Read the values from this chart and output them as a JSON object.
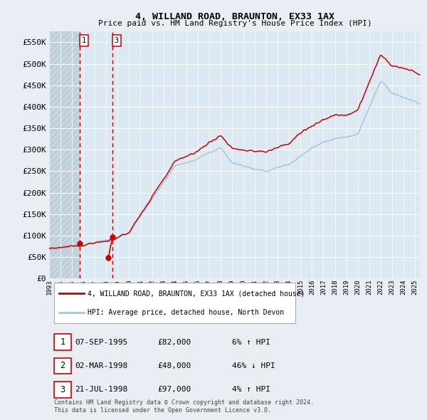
{
  "title": "4, WILLAND ROAD, BRAUNTON, EX33 1AX",
  "subtitle": "Price paid vs. HM Land Registry's House Price Index (HPI)",
  "ylim": [
    0,
    575000
  ],
  "yticks": [
    0,
    50000,
    100000,
    150000,
    200000,
    250000,
    300000,
    350000,
    400000,
    450000,
    500000,
    550000
  ],
  "ytick_labels": [
    "£0",
    "£50K",
    "£100K",
    "£150K",
    "£200K",
    "£250K",
    "£300K",
    "£350K",
    "£400K",
    "£450K",
    "£500K",
    "£550K"
  ],
  "xlim_start": 1993.0,
  "xlim_end": 2025.5,
  "background_color": "#e8eef4",
  "plot_bg_color": "#dce8f2",
  "grid_color": "#ffffff",
  "hatch_fill_color": "#c8d4de",
  "line_red": "#cc0000",
  "line_blue": "#a8c4dc",
  "transaction_marker_color": "#cc0000",
  "vline_color": "#cc0000",
  "legend_label_red": "4, WILLAND ROAD, BRAUNTON, EX33 1AX (detached house)",
  "legend_label_blue": "HPI: Average price, detached house, North Devon",
  "marker_dates": [
    1995.685,
    1998.17,
    1998.55
  ],
  "marker_prices": [
    82000,
    48000,
    97000
  ],
  "vlines": [
    1995.685,
    1998.55
  ],
  "table_rows": [
    [
      "1",
      "07-SEP-1995",
      "£82,000",
      "6% ↑ HPI"
    ],
    [
      "2",
      "02-MAR-1998",
      "£48,000",
      "46% ↓ HPI"
    ],
    [
      "3",
      "21-JUL-1998",
      "£97,000",
      "4% ↑ HPI"
    ]
  ],
  "footnote": "Contains HM Land Registry data © Crown copyright and database right 2024.\nThis data is licensed under the Open Government Licence v3.0.",
  "hatch_end": 1995.685
}
